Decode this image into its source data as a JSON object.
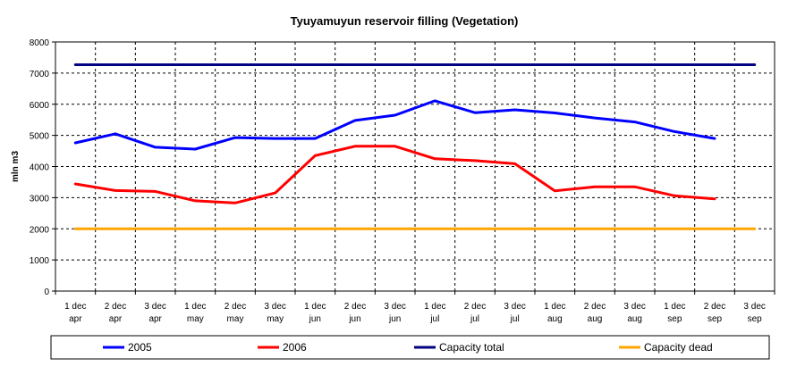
{
  "chart_data": {
    "type": "line",
    "title": "Tyuyamuyun reservoir filling (Vegetation)",
    "ylabel": "mln m3",
    "xlabel": "",
    "ylim": [
      0,
      8000
    ],
    "y_ticks": [
      0,
      1000,
      2000,
      3000,
      4000,
      5000,
      6000,
      7000,
      8000
    ],
    "grid": true,
    "legend_position": "bottom",
    "categories": [
      [
        "1 dec",
        "apr"
      ],
      [
        "2 dec",
        "apr"
      ],
      [
        "3 dec",
        "apr"
      ],
      [
        "1 dec",
        "may"
      ],
      [
        "2 dec",
        "may"
      ],
      [
        "3 dec",
        "may"
      ],
      [
        "1 dec",
        "jun"
      ],
      [
        "2 dec",
        "jun"
      ],
      [
        "3 dec",
        "jun"
      ],
      [
        "1 dec",
        "jul"
      ],
      [
        "2 dec",
        "jul"
      ],
      [
        "3 dec",
        "jul"
      ],
      [
        "1 dec",
        "aug"
      ],
      [
        "2 dec",
        "aug"
      ],
      [
        "3 dec",
        "aug"
      ],
      [
        "1 dec",
        "sep"
      ],
      [
        "2 dec",
        "sep"
      ],
      [
        "3 dec",
        "sep"
      ]
    ],
    "series": [
      {
        "name": "2005",
        "color": "#0000ff",
        "values": [
          4760,
          5050,
          4620,
          4560,
          4930,
          4900,
          4900,
          5480,
          5650,
          6110,
          5730,
          5820,
          5720,
          5560,
          5430,
          5120,
          4900,
          null
        ]
      },
      {
        "name": "2006",
        "color": "#ff0000",
        "values": [
          3440,
          3230,
          3200,
          2900,
          2830,
          3150,
          4350,
          4650,
          4650,
          4250,
          4190,
          4090,
          3220,
          3350,
          3350,
          3060,
          2960,
          null
        ]
      },
      {
        "name": "Capacity total",
        "color": "#000080",
        "values": [
          7270,
          7270,
          7270,
          7270,
          7270,
          7270,
          7270,
          7270,
          7270,
          7270,
          7270,
          7270,
          7270,
          7270,
          7270,
          7270,
          7270,
          7270
        ]
      },
      {
        "name": "Capacity dead",
        "color": "#ffa500",
        "values": [
          2000,
          2000,
          2000,
          2000,
          2000,
          2000,
          2000,
          2000,
          2000,
          2000,
          2000,
          2000,
          2000,
          2000,
          2000,
          2000,
          2000,
          2000
        ]
      }
    ]
  }
}
